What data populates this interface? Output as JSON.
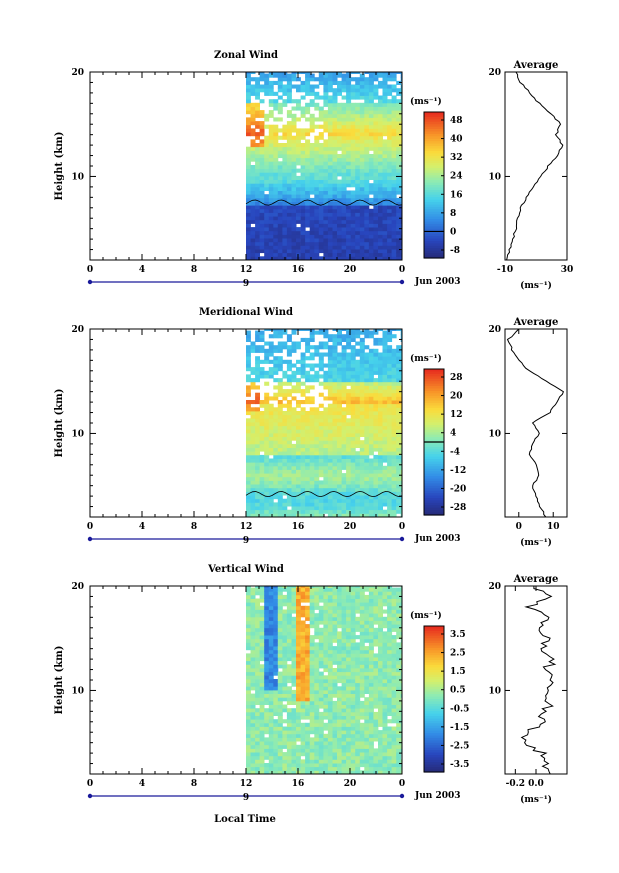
{
  "figure": {
    "x_axis_label": "Local Time",
    "date_label": "Jun 2003",
    "day_label": "9"
  },
  "chart_data": [
    {
      "type": "heatmap",
      "title": "Zonal Wind",
      "ylabel": "Height (km)",
      "x_ticks": [
        "0",
        "4",
        "8",
        "12",
        "16",
        "20",
        "0"
      ],
      "y_ticks": [
        "20",
        "10"
      ],
      "xlim": [
        0,
        24
      ],
      "ylim": [
        2,
        20
      ],
      "data_start_hour": 12,
      "colorbar": {
        "unit": "(ms⁻¹)",
        "levels": [
          "48",
          "40",
          "32",
          "24",
          "16",
          "8",
          "0",
          "-8"
        ],
        "range": [
          -12,
          52
        ],
        "zero_contour": 0
      },
      "profile": {
        "title": "Average",
        "unit": "(ms⁻¹)",
        "x_ticks": [
          "-10",
          "30"
        ],
        "xlim": [
          -10,
          30
        ],
        "y_ticks": [
          "20",
          "10"
        ],
        "heights": [
          2,
          3,
          4,
          5,
          6,
          7,
          8,
          9,
          10,
          11,
          12,
          13,
          14,
          15,
          16,
          17,
          18,
          19,
          20
        ],
        "values": [
          -9,
          -7,
          -5,
          -3,
          -2,
          0,
          4,
          8,
          13,
          18,
          24,
          27,
          23,
          26,
          20,
          12,
          6,
          0,
          -3
        ]
      }
    },
    {
      "type": "heatmap",
      "title": "Meridional Wind",
      "ylabel": "Height (km)",
      "x_ticks": [
        "0",
        "4",
        "8",
        "12",
        "16",
        "20",
        "0"
      ],
      "y_ticks": [
        "20",
        "10"
      ],
      "xlim": [
        0,
        24
      ],
      "ylim": [
        2,
        20
      ],
      "data_start_hour": 12,
      "colorbar": {
        "unit": "(ms⁻¹)",
        "levels": [
          "28",
          "20",
          "12",
          "4",
          "-4",
          "-12",
          "-20",
          "-28"
        ],
        "range": [
          -30,
          32
        ],
        "zero_contour": 0
      },
      "profile": {
        "title": "Average",
        "unit": "(ms⁻¹)",
        "x_ticks": [
          "0",
          "10"
        ],
        "xlim": [
          -4,
          14
        ],
        "y_ticks": [
          "20",
          "10"
        ],
        "heights": [
          2,
          3,
          4,
          5,
          6,
          7,
          8,
          9,
          10,
          11,
          12,
          13,
          14,
          15,
          16,
          17,
          18,
          19,
          20
        ],
        "values": [
          8,
          6,
          5,
          4,
          6,
          5,
          3,
          4,
          6,
          4,
          9,
          11,
          13,
          8,
          3,
          0,
          -2,
          -3,
          0
        ]
      }
    },
    {
      "type": "heatmap",
      "title": "Vertical Wind",
      "ylabel": "Height (km)",
      "x_ticks": [
        "0",
        "4",
        "8",
        "12",
        "16",
        "20",
        "0"
      ],
      "y_ticks": [
        "20",
        "10"
      ],
      "xlim": [
        0,
        24
      ],
      "ylim": [
        2,
        20
      ],
      "data_start_hour": 12,
      "colorbar": {
        "unit": "(ms⁻¹)",
        "levels": [
          "3.5",
          "2.5",
          "1.5",
          "0.5",
          "-0.5",
          "-1.5",
          "-2.5",
          "-3.5"
        ],
        "range": [
          -4,
          4
        ]
      },
      "profile": {
        "title": "Average",
        "unit": "(ms⁻¹)",
        "x_ticks": [
          "-0.2",
          "0.0"
        ],
        "xlim": [
          -0.3,
          0.3
        ],
        "y_ticks": [
          "20",
          "10"
        ],
        "heights": [
          2,
          3,
          4,
          5,
          6,
          7,
          8,
          9,
          10,
          11,
          12,
          13,
          14,
          15,
          16,
          17,
          18,
          19,
          20
        ],
        "values": [
          0.12,
          0.1,
          0.05,
          -0.1,
          -0.08,
          0.05,
          0.1,
          0.12,
          0.08,
          0.14,
          0.1,
          0.18,
          0.05,
          0.12,
          0.05,
          0.15,
          -0.05,
          0.1,
          -0.02
        ]
      }
    }
  ]
}
